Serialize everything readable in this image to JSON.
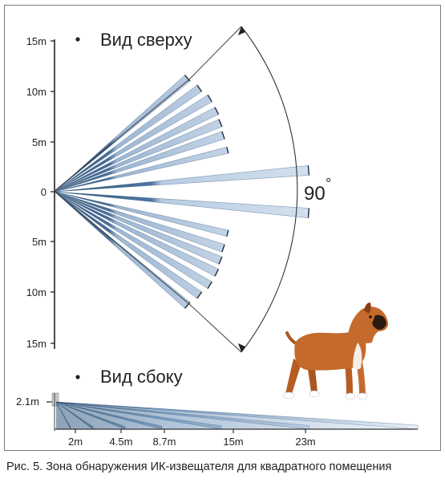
{
  "top_view": {
    "title": "Вид сверху",
    "y_ticks": [
      "15m",
      "10m",
      "5m",
      "0",
      "5m",
      "10m",
      "15m"
    ],
    "angle_label": "90",
    "angle_unit": "°",
    "beam_count": 14
  },
  "side_view": {
    "title": "Вид сбоку",
    "height_label": "2.1m",
    "x_ticks": [
      "2m",
      "4.5m",
      "8.7m",
      "15m",
      "23m"
    ]
  },
  "caption": {
    "prefix": "Рис. 5.",
    "text": "Зона обнаружения ИК-извещателя для квадратного помещения"
  },
  "colors": {
    "beam_dark": "#2f5577",
    "beam_mid": "#6f93b8",
    "beam_light": "#c6d6e8",
    "axis": "#222222",
    "dog_body": "#c46a2c"
  }
}
